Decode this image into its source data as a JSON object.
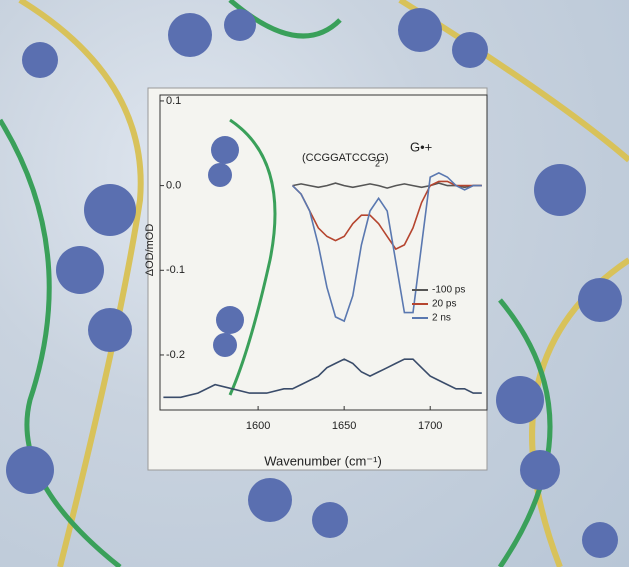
{
  "chart_data": {
    "type": "line",
    "annotations": {
      "sequence": "(CCGGATCCGG)",
      "sequence_subscript": "2",
      "species": "G•+"
    },
    "xlabel": "Wavenumber (cm⁻¹)",
    "ylabel": "ΔOD/mOD",
    "x": [
      1545,
      1555,
      1565,
      1575,
      1585,
      1595,
      1605,
      1615,
      1620,
      1625,
      1630,
      1635,
      1640,
      1645,
      1650,
      1655,
      1660,
      1665,
      1670,
      1675,
      1680,
      1685,
      1690,
      1695,
      1700,
      1705,
      1710,
      1715,
      1720,
      1725,
      1730
    ],
    "series": [
      {
        "color": "#3a4c6a",
        "values": [
          -0.25,
          -0.25,
          -0.245,
          -0.235,
          -0.24,
          -0.245,
          -0.245,
          -0.24,
          -0.24,
          -0.235,
          -0.23,
          -0.225,
          -0.215,
          -0.21,
          -0.205,
          -0.21,
          -0.22,
          -0.225,
          -0.22,
          -0.215,
          -0.21,
          -0.205,
          -0.205,
          -0.215,
          -0.225,
          -0.23,
          -0.235,
          -0.24,
          -0.24,
          -0.245,
          -0.245
        ]
      },
      {
        "name": "-100 ps",
        "color": "#555555",
        "values": [
          null,
          null,
          null,
          null,
          null,
          null,
          null,
          null,
          0,
          0.002,
          0,
          -0.002,
          0,
          0.003,
          0,
          -0.002,
          0,
          0.002,
          0,
          -0.003,
          0,
          0.002,
          0,
          -0.002,
          0,
          0.003,
          0,
          0,
          -0.002,
          0,
          0
        ]
      },
      {
        "name": "20 ps",
        "color": "#b5452f",
        "values": [
          null,
          null,
          null,
          null,
          null,
          null,
          null,
          null,
          0,
          -0.01,
          -0.03,
          -0.05,
          -0.06,
          -0.065,
          -0.06,
          -0.045,
          -0.035,
          -0.035,
          -0.045,
          -0.06,
          -0.075,
          -0.07,
          -0.05,
          -0.02,
          0.0,
          0.005,
          0.005,
          0,
          0,
          0,
          0
        ]
      },
      {
        "name": "2 ns",
        "color": "#5a78b0",
        "values": [
          null,
          null,
          null,
          null,
          null,
          null,
          null,
          null,
          0,
          -0.01,
          -0.03,
          -0.07,
          -0.12,
          -0.155,
          -0.16,
          -0.13,
          -0.07,
          -0.03,
          -0.015,
          -0.03,
          -0.09,
          -0.15,
          -0.15,
          -0.07,
          0.01,
          0.015,
          0.01,
          0.0,
          -0.005,
          0,
          0
        ]
      }
    ],
    "xlim": [
      1543,
      1733
    ],
    "xticks": [
      1600,
      1650,
      1700
    ],
    "ylim": [
      -0.265,
      0.107
    ],
    "yticks": [
      0.1,
      {
        "value": 0,
        "label": "0.0"
      },
      -0.1,
      -0.2
    ],
    "legend": "right"
  }
}
